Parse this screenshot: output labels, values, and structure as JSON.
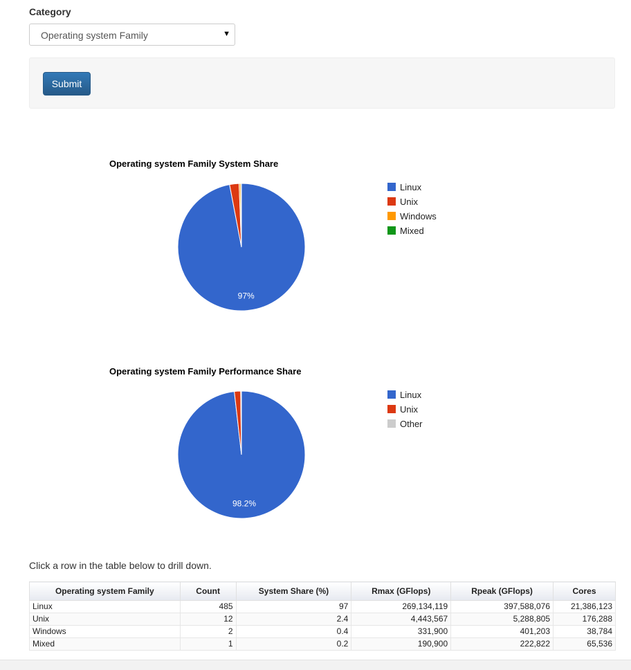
{
  "form": {
    "category_label": "Category",
    "category_selected": "Operating system Family",
    "submit_label": "Submit"
  },
  "chart_data": [
    {
      "type": "pie",
      "title": "Operating system Family System Share",
      "labels": [
        "Linux",
        "Unix",
        "Windows",
        "Mixed"
      ],
      "values": [
        97,
        2.4,
        0.4,
        0.2
      ],
      "colors": [
        "#3366cc",
        "#dc3912",
        "#ff9900",
        "#109618"
      ],
      "slice_labels": [
        "97%",
        "",
        "",
        ""
      ],
      "legend_position": "right"
    },
    {
      "type": "pie",
      "title": "Operating system Family Performance Share",
      "labels": [
        "Linux",
        "Unix",
        "Other"
      ],
      "values": [
        98.2,
        1.6,
        0.2
      ],
      "colors": [
        "#3366cc",
        "#dc3912",
        "#cccccc"
      ],
      "slice_labels": [
        "98.2%",
        "",
        ""
      ],
      "legend_position": "right"
    }
  ],
  "drill_text": "Click a row in the table below to drill down.",
  "table": {
    "headers": [
      "Operating system Family",
      "Count",
      "System Share (%)",
      "Rmax (GFlops)",
      "Rpeak (GFlops)",
      "Cores"
    ],
    "rows": [
      [
        "Linux",
        "485",
        "97",
        "269,134,119",
        "397,588,076",
        "21,386,123"
      ],
      [
        "Unix",
        "12",
        "2.4",
        "4,443,567",
        "5,288,805",
        "176,288"
      ],
      [
        "Windows",
        "2",
        "0.4",
        "331,900",
        "401,203",
        "38,784"
      ],
      [
        "Mixed",
        "1",
        "0.2",
        "190,900",
        "222,822",
        "65,536"
      ]
    ]
  }
}
